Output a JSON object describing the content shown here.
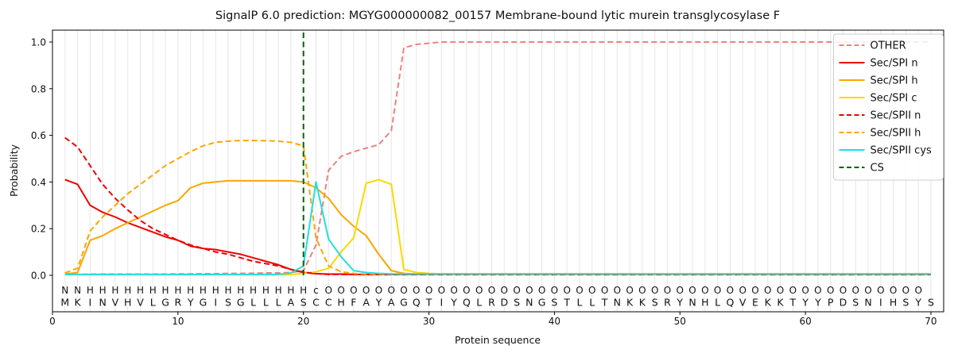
{
  "title": "SignalP 6.0 prediction: MGYG000000082_00157 Membrane-bound lytic murein transglycosylase F",
  "axes": {
    "xlabel": "Protein sequence",
    "ylabel": "Probability",
    "xticks": [
      0,
      10,
      20,
      30,
      40,
      50,
      60,
      70
    ],
    "yticks": [
      0.0,
      0.2,
      0.4,
      0.6,
      0.8,
      1.0
    ],
    "xlim": [
      0,
      71
    ],
    "ylim": [
      -0.156,
      1.051
    ],
    "grid": "vertical line at every residue position"
  },
  "legend": {
    "position": "upper-right",
    "entries": [
      {
        "label": "OTHER",
        "color": "#f08080",
        "dash": true
      },
      {
        "label": "Sec/SPI n",
        "color": "#f00000",
        "dash": false
      },
      {
        "label": "Sec/SPI h",
        "color": "#ffa500",
        "dash": false
      },
      {
        "label": "Sec/SPI c",
        "color": "#ffd700",
        "dash": false
      },
      {
        "label": "Sec/SPII n",
        "color": "#f00000",
        "dash": true
      },
      {
        "label": "Sec/SPII h",
        "color": "#ffa500",
        "dash": true
      },
      {
        "label": "Sec/SPII cys",
        "color": "#1fe0e0",
        "dash": false
      },
      {
        "label": "CS",
        "color": "#006400",
        "dash": true
      }
    ]
  },
  "chart_data": {
    "type": "line",
    "x_start": 1,
    "cs_position": 20,
    "cs_color": "#006400",
    "series": [
      {
        "name": "OTHER",
        "color": "#f08080",
        "dash": true,
        "values": [
          0.004,
          0.004,
          0.005,
          0.005,
          0.005,
          0.005,
          0.005,
          0.005,
          0.005,
          0.006,
          0.006,
          0.007,
          0.007,
          0.008,
          0.008,
          0.009,
          0.01,
          0.01,
          0.012,
          0.02,
          0.13,
          0.45,
          0.51,
          0.53,
          0.545,
          0.56,
          0.62,
          0.975,
          0.99,
          0.995,
          1,
          1,
          1,
          1,
          1,
          1,
          1,
          1,
          1,
          1,
          1,
          1,
          1,
          1,
          1,
          1,
          1,
          1,
          1,
          1,
          1,
          1,
          1,
          1,
          1,
          1,
          1,
          1,
          1,
          1,
          1,
          1,
          1,
          1,
          1,
          1,
          1,
          1,
          1,
          1
        ]
      },
      {
        "name": "Sec/SPI n",
        "color": "#f00000",
        "dash": false,
        "values": [
          0.41,
          0.39,
          0.3,
          0.27,
          0.25,
          0.225,
          0.205,
          0.185,
          0.165,
          0.15,
          0.125,
          0.115,
          0.11,
          0.1,
          0.09,
          0.075,
          0.06,
          0.045,
          0.025,
          0.012,
          0.007,
          0.005,
          0.005,
          0.004,
          0.004,
          0.004,
          0.004,
          0.004,
          0.004,
          0.004,
          0.004,
          0.004,
          0.004,
          0.004,
          0.004,
          0.004,
          0.004,
          0.004,
          0.004,
          0.004,
          0.004,
          0.004,
          0.004,
          0.004,
          0.004,
          0.004,
          0.004,
          0.004,
          0.004,
          0.004,
          0.004,
          0.004,
          0.004,
          0.004,
          0.004,
          0.004,
          0.004,
          0.004,
          0.004,
          0.004,
          0.004,
          0.004,
          0.004,
          0.004,
          0.004,
          0.004,
          0.004,
          0.004,
          0.004,
          0.004
        ]
      },
      {
        "name": "Sec/SPI h",
        "color": "#ffa500",
        "dash": false,
        "values": [
          0.005,
          0.012,
          0.15,
          0.17,
          0.2,
          0.225,
          0.25,
          0.275,
          0.3,
          0.32,
          0.375,
          0.395,
          0.4,
          0.405,
          0.405,
          0.405,
          0.405,
          0.405,
          0.405,
          0.4,
          0.375,
          0.33,
          0.26,
          0.21,
          0.17,
          0.09,
          0.02,
          0.008,
          0.005,
          0.004,
          0.004,
          0.004,
          0.004,
          0.004,
          0.004,
          0.004,
          0.004,
          0.004,
          0.004,
          0.004,
          0.004,
          0.004,
          0.004,
          0.004,
          0.004,
          0.004,
          0.004,
          0.004,
          0.004,
          0.004,
          0.004,
          0.004,
          0.004,
          0.004,
          0.004,
          0.004,
          0.004,
          0.004,
          0.004,
          0.004,
          0.004,
          0.004,
          0.004,
          0.004,
          0.004,
          0.004,
          0.004,
          0.004,
          0.004,
          0.004
        ]
      },
      {
        "name": "Sec/SPI c",
        "color": "#ffd700",
        "dash": false,
        "values": [
          0.003,
          0.003,
          0.003,
          0.003,
          0.003,
          0.003,
          0.003,
          0.003,
          0.003,
          0.003,
          0.003,
          0.003,
          0.003,
          0.003,
          0.003,
          0.003,
          0.003,
          0.003,
          0.003,
          0.008,
          0.015,
          0.03,
          0.1,
          0.16,
          0.395,
          0.41,
          0.39,
          0.025,
          0.012,
          0.008,
          0.006,
          0.006,
          0.006,
          0.006,
          0.006,
          0.006,
          0.006,
          0.006,
          0.006,
          0.006,
          0.006,
          0.006,
          0.006,
          0.006,
          0.006,
          0.006,
          0.006,
          0.006,
          0.006,
          0.006,
          0.006,
          0.006,
          0.006,
          0.006,
          0.006,
          0.006,
          0.006,
          0.006,
          0.006,
          0.006,
          0.006,
          0.006,
          0.006,
          0.006,
          0.006,
          0.006,
          0.006,
          0.006,
          0.006,
          0.006
        ]
      },
      {
        "name": "Sec/SPII n",
        "color": "#f00000",
        "dash": true,
        "values": [
          0.59,
          0.55,
          0.47,
          0.39,
          0.33,
          0.28,
          0.235,
          0.2,
          0.175,
          0.15,
          0.13,
          0.115,
          0.1,
          0.09,
          0.075,
          0.06,
          0.05,
          0.04,
          0.025,
          0.013,
          0.007,
          0.004,
          0.004,
          0.004,
          0.003,
          0.003,
          0.003,
          0.003,
          0.003,
          0.003,
          0.003,
          0.003,
          0.003,
          0.003,
          0.003,
          0.003,
          0.003,
          0.003,
          0.003,
          0.003,
          0.003,
          0.003,
          0.003,
          0.003,
          0.003,
          0.003,
          0.003,
          0.003,
          0.003,
          0.003,
          0.003,
          0.003,
          0.003,
          0.003,
          0.003,
          0.003,
          0.003,
          0.003,
          0.003,
          0.003,
          0.003,
          0.003,
          0.003,
          0.003,
          0.003,
          0.003,
          0.003,
          0.003,
          0.003,
          0.003
        ]
      },
      {
        "name": "Sec/SPII h",
        "color": "#ffa500",
        "dash": true,
        "values": [
          0.01,
          0.03,
          0.19,
          0.25,
          0.3,
          0.35,
          0.39,
          0.43,
          0.47,
          0.5,
          0.53,
          0.555,
          0.57,
          0.575,
          0.578,
          0.578,
          0.577,
          0.575,
          0.57,
          0.555,
          0.16,
          0.04,
          0.015,
          0.008,
          0.005,
          0.005,
          0.005,
          0.005,
          0.005,
          0.005,
          0.005,
          0.005,
          0.005,
          0.005,
          0.005,
          0.005,
          0.005,
          0.005,
          0.005,
          0.005,
          0.005,
          0.005,
          0.005,
          0.005,
          0.005,
          0.005,
          0.005,
          0.005,
          0.005,
          0.005,
          0.005,
          0.005,
          0.005,
          0.005,
          0.005,
          0.005,
          0.005,
          0.005,
          0.005,
          0.005,
          0.005,
          0.005,
          0.005,
          0.005,
          0.005,
          0.005,
          0.005,
          0.005,
          0.005,
          0.005
        ]
      },
      {
        "name": "Sec/SPII cys",
        "color": "#1fe0e0",
        "dash": false,
        "values": [
          0.004,
          0.004,
          0.004,
          0.004,
          0.004,
          0.004,
          0.004,
          0.004,
          0.004,
          0.004,
          0.004,
          0.004,
          0.004,
          0.004,
          0.004,
          0.004,
          0.004,
          0.004,
          0.01,
          0.04,
          0.4,
          0.155,
          0.08,
          0.02,
          0.012,
          0.008,
          0.006,
          0.006,
          0.006,
          0.006,
          0.006,
          0.006,
          0.006,
          0.006,
          0.006,
          0.006,
          0.006,
          0.006,
          0.006,
          0.006,
          0.006,
          0.006,
          0.006,
          0.006,
          0.006,
          0.006,
          0.006,
          0.006,
          0.006,
          0.006,
          0.006,
          0.006,
          0.006,
          0.006,
          0.006,
          0.006,
          0.006,
          0.006,
          0.006,
          0.006,
          0.006,
          0.006,
          0.006,
          0.006,
          0.006,
          0.006,
          0.006,
          0.006,
          0.006,
          0.006
        ]
      }
    ]
  },
  "sequence": {
    "residues": "MKINVHVLGRYGISGLLLASCCHFAYAGQTIYQLRDSNGSTLLTNKKSRYNHLQVEKKTYYPDSNIHSYS",
    "annotation": "NNHHHHHHHHHHHHHHHHHHcOOOOOOOOOOOOOOOOOOOOOOOOOOOOOOOOOOOOOOOOOOOOOOOO",
    "annotation_colors": {
      "N": "#f00000",
      "H": "#ffa500",
      "c": "#1fe0e0",
      "O": "#8a8a8a"
    },
    "residue_color": "#262626"
  }
}
